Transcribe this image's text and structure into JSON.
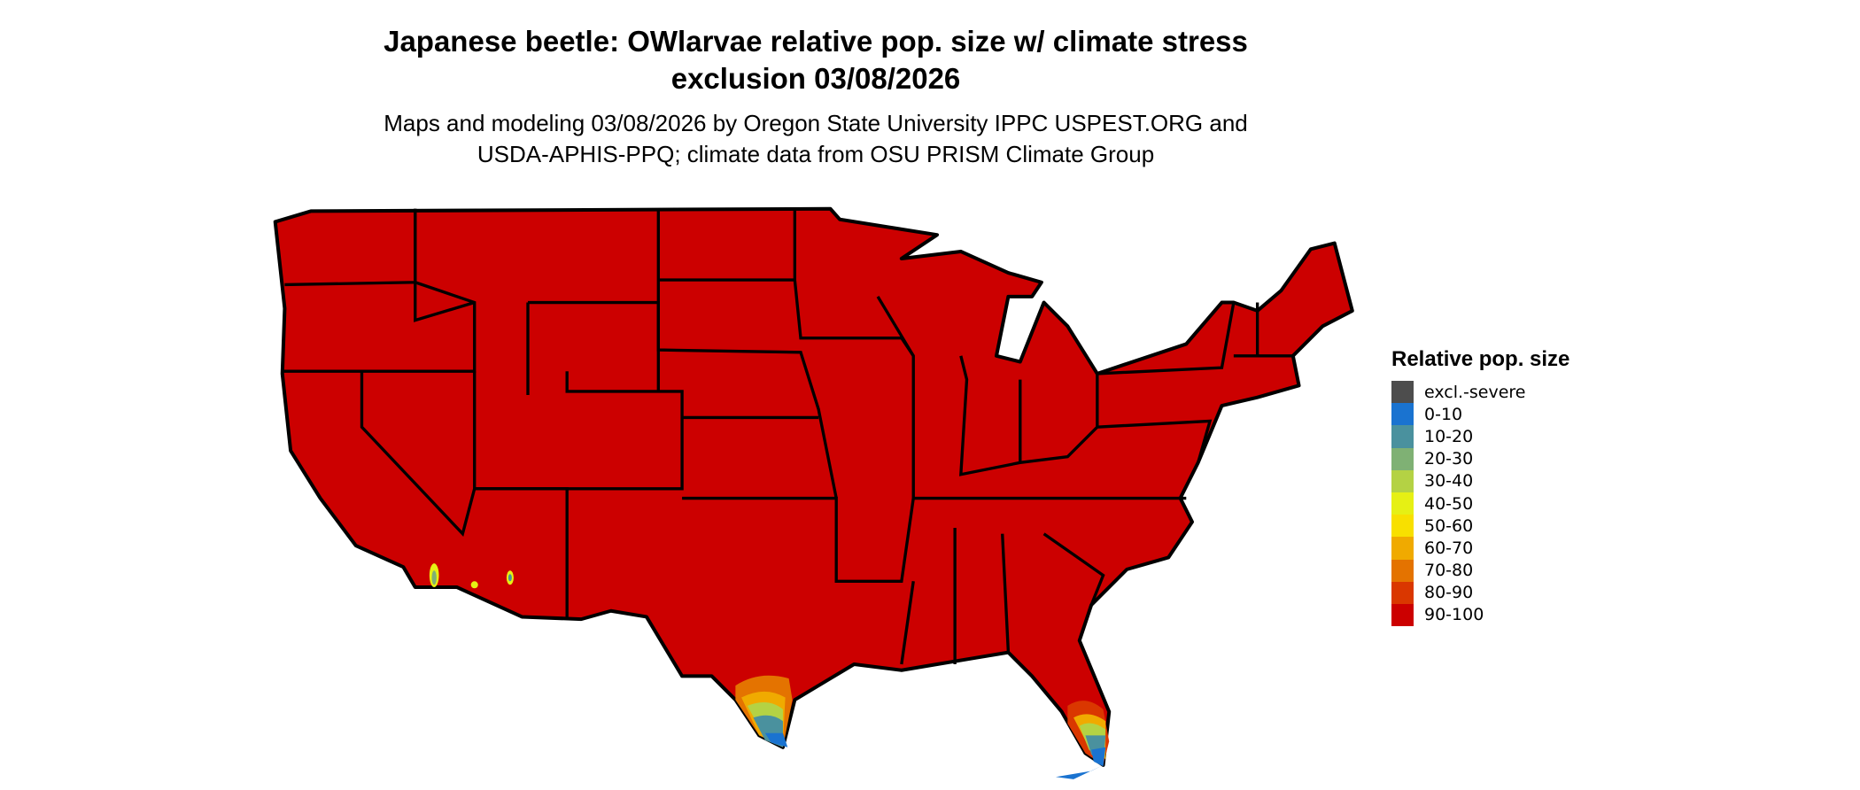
{
  "title_line1": "Japanese beetle: OWlarvae relative pop. size w/ climate stress",
  "title_line2": "exclusion 03/08/2026",
  "subtitle_line1": "Maps and modeling 03/08/2026 by Oregon State University IPPC USPEST.ORG and",
  "subtitle_line2": "USDA-APHIS-PPQ; climate data from OSU PRISM Climate Group",
  "map": {
    "region": "Contiguous United States",
    "dominant_class": "90-100",
    "outline_color": "#000000"
  },
  "legend": {
    "title": "Relative pop. size",
    "items": [
      {
        "label": "excl.-severe",
        "color": "#4d4d4d"
      },
      {
        "label": "0-10",
        "color": "#1a73d0"
      },
      {
        "label": "10-20",
        "color": "#4a919e"
      },
      {
        "label": "20-30",
        "color": "#7fb174"
      },
      {
        "label": "30-40",
        "color": "#b4d244"
      },
      {
        "label": "40-50",
        "color": "#e6f014"
      },
      {
        "label": "50-60",
        "color": "#f8e000"
      },
      {
        "label": "60-70",
        "color": "#f0aa00"
      },
      {
        "label": "70-80",
        "color": "#e47300"
      },
      {
        "label": "80-90",
        "color": "#da3700"
      },
      {
        "label": "90-100",
        "color": "#cc0000"
      }
    ]
  }
}
